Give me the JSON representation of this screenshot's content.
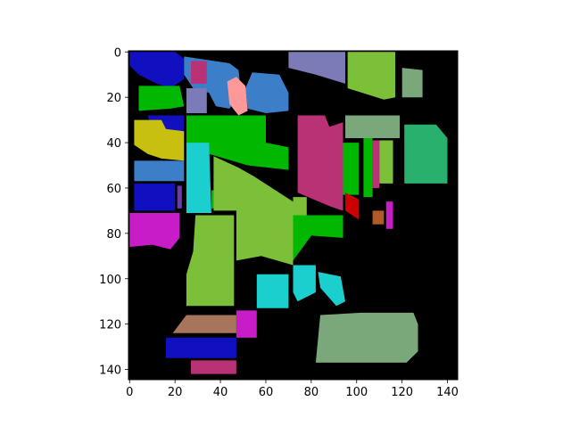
{
  "chart_data": {
    "type": "heatmap",
    "title": "",
    "xlabel": "",
    "ylabel": "",
    "xlim": [
      -0.5,
      144.5
    ],
    "ylim": [
      144.5,
      -0.5
    ],
    "x_ticks": [
      0,
      20,
      40,
      60,
      80,
      100,
      120,
      140
    ],
    "y_ticks": [
      0,
      20,
      40,
      60,
      80,
      100,
      120,
      140
    ],
    "background_color": "#000000",
    "legend": "none",
    "grid": false,
    "regions": [
      {
        "color": "#1010c0",
        "points": [
          [
            0,
            0
          ],
          [
            20,
            0
          ],
          [
            24,
            3
          ],
          [
            24,
            12
          ],
          [
            18,
            16
          ],
          [
            12,
            14
          ],
          [
            4,
            10
          ],
          [
            0,
            6
          ]
        ]
      },
      {
        "color": "#1010c0",
        "points": [
          [
            8,
            28
          ],
          [
            24,
            28
          ],
          [
            24,
            37
          ],
          [
            10,
            36
          ]
        ]
      },
      {
        "color": "#1010c0",
        "points": [
          [
            2,
            58
          ],
          [
            20,
            58
          ],
          [
            20,
            70
          ],
          [
            2,
            70
          ]
        ]
      },
      {
        "color": "#1010c0",
        "points": [
          [
            16,
            126
          ],
          [
            47,
            126
          ],
          [
            47,
            135
          ],
          [
            16,
            135
          ]
        ]
      },
      {
        "color": "#3c7fc8",
        "points": [
          [
            24,
            2
          ],
          [
            44,
            5
          ],
          [
            48,
            8
          ],
          [
            49,
            18
          ],
          [
            44,
            25
          ],
          [
            38,
            24
          ],
          [
            35,
            18
          ],
          [
            28,
            16
          ],
          [
            24,
            10
          ]
        ]
      },
      {
        "color": "#3c7fc8",
        "points": [
          [
            2,
            48
          ],
          [
            24,
            48
          ],
          [
            24,
            57
          ],
          [
            2,
            57
          ]
        ]
      },
      {
        "color": "#3c7fc8",
        "points": [
          [
            54,
            9
          ],
          [
            66,
            10
          ],
          [
            70,
            18
          ],
          [
            70,
            26
          ],
          [
            60,
            27
          ],
          [
            52,
            25
          ],
          [
            51,
            16
          ]
        ]
      },
      {
        "color": "#b83275",
        "points": [
          [
            27,
            4
          ],
          [
            34,
            4
          ],
          [
            34,
            14
          ],
          [
            27,
            14
          ]
        ]
      },
      {
        "color": "#b83275",
        "points": [
          [
            74,
            28
          ],
          [
            86,
            28
          ],
          [
            88,
            33
          ],
          [
            94,
            31
          ],
          [
            94,
            70
          ],
          [
            88,
            68
          ],
          [
            74,
            62
          ]
        ]
      },
      {
        "color": "#b83275",
        "points": [
          [
            107,
            39
          ],
          [
            110,
            39
          ],
          [
            110,
            60
          ],
          [
            107,
            60
          ]
        ]
      },
      {
        "color": "#b83275",
        "points": [
          [
            27,
            136
          ],
          [
            47,
            136
          ],
          [
            47,
            142
          ],
          [
            27,
            142
          ]
        ]
      },
      {
        "color": "#c81cc8",
        "points": [
          [
            0,
            71
          ],
          [
            22,
            71
          ],
          [
            22,
            82
          ],
          [
            18,
            87
          ],
          [
            10,
            85
          ],
          [
            0,
            86
          ]
        ]
      },
      {
        "color": "#c81cc8",
        "points": [
          [
            47,
            114
          ],
          [
            56,
            114
          ],
          [
            56,
            126
          ],
          [
            47,
            126
          ]
        ]
      },
      {
        "color": "#c81cc8",
        "points": [
          [
            113,
            66
          ],
          [
            116,
            66
          ],
          [
            116,
            78
          ],
          [
            113,
            78
          ]
        ]
      },
      {
        "color": "#00b800",
        "points": [
          [
            4,
            15
          ],
          [
            22,
            15
          ],
          [
            24,
            24
          ],
          [
            18,
            25
          ],
          [
            4,
            26
          ]
        ]
      },
      {
        "color": "#00b800",
        "points": [
          [
            25,
            28
          ],
          [
            60,
            28
          ],
          [
            60,
            40
          ],
          [
            70,
            42
          ],
          [
            70,
            52
          ],
          [
            52,
            50
          ],
          [
            25,
            42
          ]
        ]
      },
      {
        "color": "#00b800",
        "points": [
          [
            36,
            61
          ],
          [
            46,
            61
          ],
          [
            46,
            69
          ],
          [
            36,
            69
          ]
        ]
      },
      {
        "color": "#00b800",
        "points": [
          [
            72,
            72
          ],
          [
            94,
            72
          ],
          [
            94,
            82
          ],
          [
            80,
            81
          ],
          [
            72,
            92
          ]
        ]
      },
      {
        "color": "#00b800",
        "points": [
          [
            94,
            40
          ],
          [
            101,
            40
          ],
          [
            101,
            63
          ],
          [
            94,
            63
          ]
        ]
      },
      {
        "color": "#00b800",
        "points": [
          [
            103,
            38
          ],
          [
            107,
            38
          ],
          [
            107,
            64
          ],
          [
            103,
            64
          ]
        ]
      },
      {
        "color": "#7cc03a",
        "points": [
          [
            96,
            0
          ],
          [
            117,
            0
          ],
          [
            117,
            20
          ],
          [
            112,
            21
          ],
          [
            96,
            16
          ]
        ]
      },
      {
        "color": "#7cc03a",
        "points": [
          [
            37,
            46
          ],
          [
            48,
            51
          ],
          [
            55,
            55
          ],
          [
            72,
            66
          ],
          [
            72,
            94
          ],
          [
            58,
            90
          ],
          [
            47,
            92
          ],
          [
            47,
            70
          ],
          [
            37,
            70
          ]
        ]
      },
      {
        "color": "#7cc03a",
        "points": [
          [
            29,
            72
          ],
          [
            46,
            72
          ],
          [
            46,
            112
          ],
          [
            25,
            112
          ],
          [
            25,
            98
          ],
          [
            28,
            88
          ]
        ]
      },
      {
        "color": "#7cc03a",
        "points": [
          [
            72,
            64
          ],
          [
            78,
            64
          ],
          [
            78,
            72
          ],
          [
            72,
            72
          ]
        ]
      },
      {
        "color": "#7cc03a",
        "points": [
          [
            110,
            39
          ],
          [
            116,
            39
          ],
          [
            116,
            58
          ],
          [
            110,
            58
          ]
        ]
      },
      {
        "color": "#7b7bb8",
        "points": [
          [
            70,
            0
          ],
          [
            95,
            0
          ],
          [
            95,
            14
          ],
          [
            82,
            10
          ],
          [
            70,
            7
          ]
        ]
      },
      {
        "color": "#7b7bb8",
        "points": [
          [
            25,
            16
          ],
          [
            34,
            16
          ],
          [
            34,
            27
          ],
          [
            25,
            27
          ]
        ]
      },
      {
        "color": "#ff9999",
        "points": [
          [
            43,
            13
          ],
          [
            47,
            11
          ],
          [
            51,
            15
          ],
          [
            52,
            26
          ],
          [
            48,
            28
          ],
          [
            44,
            23
          ]
        ]
      },
      {
        "color": "#c8c010",
        "points": [
          [
            2,
            30
          ],
          [
            14,
            30
          ],
          [
            16,
            34
          ],
          [
            24,
            35
          ],
          [
            24,
            48
          ],
          [
            14,
            47
          ],
          [
            8,
            45
          ],
          [
            2,
            41
          ]
        ]
      },
      {
        "color": "#1ccfcf",
        "points": [
          [
            25,
            40
          ],
          [
            35,
            40
          ],
          [
            36,
            71
          ],
          [
            25,
            71
          ]
        ]
      },
      {
        "color": "#1ccfcf",
        "points": [
          [
            56,
            98
          ],
          [
            70,
            98
          ],
          [
            70,
            113
          ],
          [
            56,
            113
          ]
        ]
      },
      {
        "color": "#1ccfcf",
        "points": [
          [
            72,
            94
          ],
          [
            82,
            94
          ],
          [
            82,
            106
          ],
          [
            74,
            110
          ],
          [
            72,
            106
          ]
        ]
      },
      {
        "color": "#1ccfcf",
        "points": [
          [
            83,
            97
          ],
          [
            93,
            99
          ],
          [
            95,
            110
          ],
          [
            91,
            112
          ],
          [
            84,
            104
          ]
        ]
      },
      {
        "color": "#7aa87a",
        "points": [
          [
            95,
            28
          ],
          [
            119,
            28
          ],
          [
            119,
            38
          ],
          [
            95,
            38
          ]
        ]
      },
      {
        "color": "#7aa87a",
        "points": [
          [
            120,
            7
          ],
          [
            129,
            8
          ],
          [
            129,
            20
          ],
          [
            120,
            20
          ]
        ]
      },
      {
        "color": "#7aa87a",
        "points": [
          [
            84,
            116
          ],
          [
            102,
            115
          ],
          [
            125,
            115
          ],
          [
            127,
            120
          ],
          [
            127,
            132
          ],
          [
            122,
            137
          ],
          [
            82,
            137
          ]
        ]
      },
      {
        "color": "#28b06c",
        "points": [
          [
            121,
            32
          ],
          [
            135,
            32
          ],
          [
            140,
            38
          ],
          [
            140,
            58
          ],
          [
            121,
            58
          ]
        ]
      },
      {
        "color": "#cc0000",
        "points": [
          [
            95,
            62
          ],
          [
            101,
            65
          ],
          [
            101,
            74
          ],
          [
            95,
            70
          ]
        ]
      },
      {
        "color": "#a8745c",
        "points": [
          [
            25,
            116
          ],
          [
            47,
            116
          ],
          [
            47,
            124
          ],
          [
            19,
            124
          ]
        ]
      },
      {
        "color": "#b05c28",
        "points": [
          [
            107,
            70
          ],
          [
            112,
            70
          ],
          [
            112,
            76
          ],
          [
            107,
            76
          ]
        ]
      },
      {
        "color": "#6a3ab0",
        "points": [
          [
            21,
            59
          ],
          [
            23,
            59
          ],
          [
            23,
            69
          ],
          [
            21,
            69
          ]
        ]
      }
    ]
  }
}
